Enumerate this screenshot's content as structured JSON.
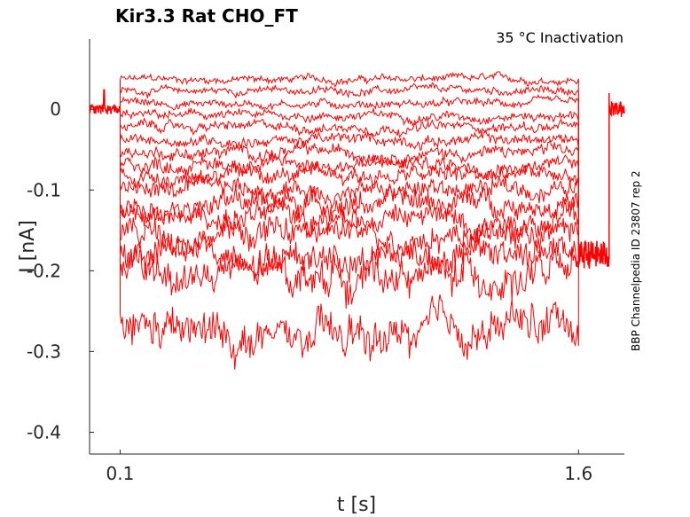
{
  "chart_data": {
    "type": "line",
    "title": "Kir3.3  Rat  CHO_FT",
    "annotation": "35 °C  Inactivation",
    "side_label": "BBP Channelpedia ID 23807 rep 2",
    "xlabel": "t [s]",
    "ylabel": "I [nA]",
    "xlim": [
      0.0,
      1.75
    ],
    "ylim": [
      -0.427,
      0.087
    ],
    "xticks": [
      {
        "v": 0.1,
        "label": "0.1"
      },
      {
        "v": 1.6,
        "label": "1.6"
      }
    ],
    "yticks": [
      {
        "v": 0,
        "label": "0"
      },
      {
        "v": -0.1,
        "label": "-0.1"
      },
      {
        "v": -0.2,
        "label": "-0.2"
      },
      {
        "v": -0.3,
        "label": "-0.3"
      },
      {
        "v": -0.4,
        "label": "-0.4"
      }
    ],
    "color": "#ff0000",
    "pulse_start": 0.1,
    "pulse_end": 1.6,
    "holding_current": 0,
    "tail_current": -0.18,
    "tail_end": 1.7,
    "series_levels": [
      0.037,
      0.023,
      0.007,
      -0.008,
      -0.022,
      -0.038,
      -0.054,
      -0.068,
      -0.082,
      -0.099,
      -0.115,
      -0.134,
      -0.153,
      -0.178,
      -0.205,
      -0.27
    ]
  }
}
